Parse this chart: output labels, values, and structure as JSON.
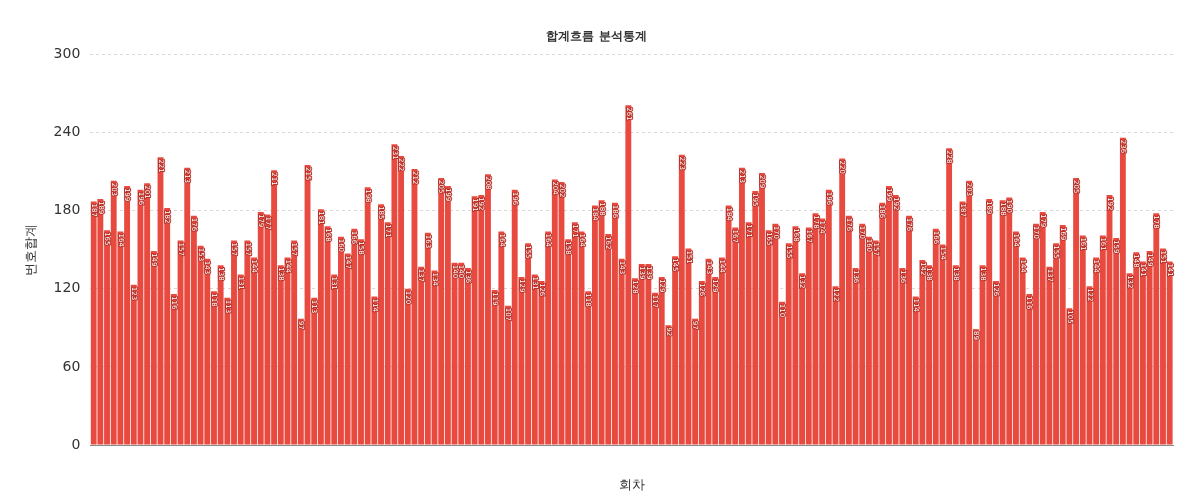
{
  "chart_data": {
    "type": "bar",
    "title": "합계흐름 분석통계",
    "xlabel": "회차",
    "ylabel": "번호합계",
    "categories": [
      null,
      null,
      null,
      null,
      null,
      null,
      null,
      null,
      null,
      null,
      null,
      null,
      null,
      null,
      null,
      null,
      null,
      null,
      null,
      null,
      null,
      null,
      null,
      null,
      null,
      null,
      null,
      null,
      null,
      null,
      null,
      null,
      null,
      null,
      null,
      null,
      null,
      null,
      null,
      null,
      null,
      null,
      null,
      null,
      null,
      null,
      null,
      null,
      null,
      null,
      null,
      null,
      null,
      null,
      null,
      null,
      null,
      null,
      null,
      null,
      null,
      null,
      null,
      null,
      null,
      null,
      null,
      null,
      null,
      null,
      null,
      null,
      null,
      null,
      null,
      null,
      null,
      null,
      null,
      null,
      null,
      null,
      null,
      null,
      null,
      null,
      null,
      null,
      null,
      null,
      null,
      null,
      null,
      null,
      null,
      null,
      null,
      null,
      null,
      null,
      null,
      null,
      null,
      null,
      null,
      null,
      null,
      null,
      null,
      null,
      null,
      null,
      null,
      null,
      null,
      null,
      null,
      null,
      null,
      null,
      null,
      null,
      null,
      null,
      null,
      null,
      null,
      null,
      null,
      null,
      null,
      null,
      null,
      null,
      null,
      null,
      null,
      null,
      null,
      null,
      null,
      null,
      null,
      null,
      null,
      null,
      null,
      null,
      null,
      null,
      null,
      null,
      null,
      null,
      null,
      null,
      null,
      null,
      null,
      null,
      null,
      null
    ],
    "values": [
      187,
      189,
      165,
      203,
      164,
      199,
      123,
      196,
      201,
      149,
      221,
      182,
      116,
      157,
      213,
      176,
      153,
      143,
      118,
      138,
      113,
      157,
      131,
      157,
      144,
      179,
      177,
      211,
      138,
      144,
      157,
      97,
      215,
      113,
      181,
      168,
      131,
      160,
      147,
      166,
      158,
      198,
      114,
      185,
      171,
      231,
      222,
      120,
      212,
      137,
      163,
      134,
      205,
      199,
      140,
      140,
      136,
      191,
      192,
      208,
      119,
      164,
      107,
      196,
      129,
      155,
      131,
      126,
      164,
      204,
      202,
      158,
      171,
      164,
      118,
      184,
      188,
      162,
      186,
      143,
      261,
      128,
      139,
      139,
      117,
      129,
      92,
      145,
      223,
      151,
      97,
      126,
      143,
      129,
      144,
      184,
      167,
      213,
      171,
      195,
      209,
      165,
      170,
      110,
      155,
      168,
      132,
      167,
      178,
      174,
      196,
      122,
      220,
      176,
      136,
      170,
      160,
      157,
      186,
      199,
      192,
      136,
      176,
      114,
      142,
      138,
      166,
      154,
      228,
      138,
      187,
      203,
      89,
      138,
      189,
      126,
      188,
      190,
      164,
      144,
      116,
      170,
      179,
      137,
      155,
      169,
      105,
      205,
      161,
      122,
      144,
      161,
      192,
      159,
      236,
      132,
      148,
      141,
      149,
      178,
      151,
      141
    ],
    "color": "#e84a3f",
    "ylim": [
      0,
      300
    ],
    "yticks": [
      0,
      60,
      120,
      180,
      240,
      300
    ],
    "grid": "y",
    "data_labels": true
  }
}
